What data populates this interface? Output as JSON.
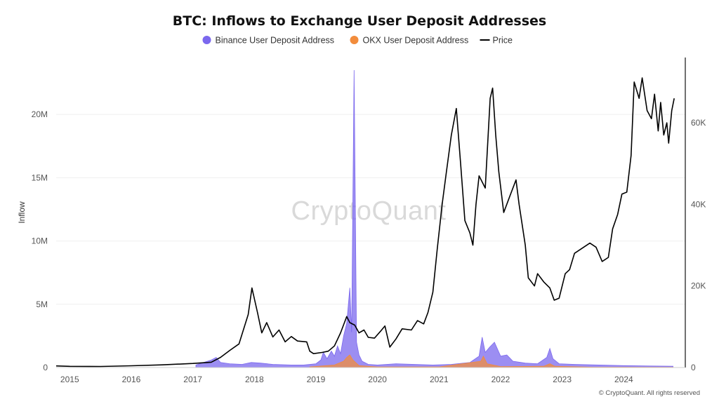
{
  "chart_data": {
    "type": "line",
    "title": "BTC: Inflows to Exchange User Deposit Addresses",
    "ylabel": "Inflow",
    "y2label": "",
    "ylim": [
      0,
      24500000
    ],
    "y2lim": [
      0,
      76000
    ],
    "xlim": [
      2014.78,
      2025.0
    ],
    "y_ticks": [
      {
        "value": 0,
        "label": "0"
      },
      {
        "value": 5000000,
        "label": "5M"
      },
      {
        "value": 10000000,
        "label": "10M"
      },
      {
        "value": 15000000,
        "label": "15M"
      },
      {
        "value": 20000000,
        "label": "20M"
      }
    ],
    "y2_ticks": [
      {
        "value": 0,
        "label": "0"
      },
      {
        "value": 20000,
        "label": "20K"
      },
      {
        "value": 40000,
        "label": "40K"
      },
      {
        "value": 60000,
        "label": "60K"
      }
    ],
    "x_ticks": [
      {
        "value": 2015,
        "label": "2015"
      },
      {
        "value": 2016,
        "label": "2016"
      },
      {
        "value": 2017,
        "label": "2017"
      },
      {
        "value": 2018,
        "label": "2018"
      },
      {
        "value": 2019,
        "label": "2019"
      },
      {
        "value": 2020,
        "label": "2020"
      },
      {
        "value": 2021,
        "label": "2021"
      },
      {
        "value": 2022,
        "label": "2022"
      },
      {
        "value": 2023,
        "label": "2023"
      },
      {
        "value": 2024,
        "label": "2024"
      }
    ],
    "legend": [
      {
        "name": "Binance User Deposit Address",
        "color": "#7b68ee",
        "marker": "dot"
      },
      {
        "name": "OKX User Deposit Address",
        "color": "#f28c3c",
        "marker": "dot"
      },
      {
        "name": "Price",
        "color": "#000000",
        "marker": "line"
      }
    ],
    "legend_position": "top-center",
    "grid": true,
    "watermark": "CryptoQuant",
    "credit": "© CryptoQuant. All rights reserved",
    "series": [
      {
        "name": "Price",
        "axis": "right",
        "color": "#000000",
        "points": [
          [
            2014.78,
            400
          ],
          [
            2015.0,
            300
          ],
          [
            2015.5,
            250
          ],
          [
            2016.0,
            430
          ],
          [
            2016.5,
            650
          ],
          [
            2017.0,
            1000
          ],
          [
            2017.3,
            1300
          ],
          [
            2017.45,
            2500
          ],
          [
            2017.6,
            4200
          ],
          [
            2017.75,
            5800
          ],
          [
            2017.9,
            13000
          ],
          [
            2017.96,
            19500
          ],
          [
            2018.05,
            13500
          ],
          [
            2018.12,
            8500
          ],
          [
            2018.2,
            11000
          ],
          [
            2018.3,
            7500
          ],
          [
            2018.4,
            9200
          ],
          [
            2018.5,
            6300
          ],
          [
            2018.6,
            7600
          ],
          [
            2018.7,
            6500
          ],
          [
            2018.85,
            6300
          ],
          [
            2018.9,
            4000
          ],
          [
            2018.96,
            3400
          ],
          [
            2019.1,
            3700
          ],
          [
            2019.2,
            4000
          ],
          [
            2019.3,
            5300
          ],
          [
            2019.4,
            8500
          ],
          [
            2019.5,
            12500
          ],
          [
            2019.55,
            11000
          ],
          [
            2019.63,
            10400
          ],
          [
            2019.7,
            8500
          ],
          [
            2019.78,
            9200
          ],
          [
            2019.85,
            7400
          ],
          [
            2019.95,
            7200
          ],
          [
            2020.05,
            8900
          ],
          [
            2020.12,
            10200
          ],
          [
            2020.2,
            5000
          ],
          [
            2020.3,
            7000
          ],
          [
            2020.4,
            9500
          ],
          [
            2020.55,
            9200
          ],
          [
            2020.65,
            11500
          ],
          [
            2020.75,
            10700
          ],
          [
            2020.82,
            13500
          ],
          [
            2020.9,
            18500
          ],
          [
            2020.97,
            29000
          ],
          [
            2021.05,
            40000
          ],
          [
            2021.12,
            48000
          ],
          [
            2021.2,
            57000
          ],
          [
            2021.28,
            63500
          ],
          [
            2021.35,
            50000
          ],
          [
            2021.42,
            36000
          ],
          [
            2021.5,
            33000
          ],
          [
            2021.55,
            30000
          ],
          [
            2021.6,
            40000
          ],
          [
            2021.65,
            47000
          ],
          [
            2021.75,
            44000
          ],
          [
            2021.83,
            66000
          ],
          [
            2021.87,
            68500
          ],
          [
            2021.92,
            57000
          ],
          [
            2021.97,
            48000
          ],
          [
            2022.05,
            38000
          ],
          [
            2022.15,
            42000
          ],
          [
            2022.25,
            46000
          ],
          [
            2022.3,
            40000
          ],
          [
            2022.4,
            30000
          ],
          [
            2022.45,
            22000
          ],
          [
            2022.55,
            20000
          ],
          [
            2022.6,
            23000
          ],
          [
            2022.7,
            21000
          ],
          [
            2022.8,
            19500
          ],
          [
            2022.87,
            16500
          ],
          [
            2022.95,
            17000
          ],
          [
            2023.05,
            23000
          ],
          [
            2023.12,
            24000
          ],
          [
            2023.2,
            28000
          ],
          [
            2023.3,
            29000
          ],
          [
            2023.45,
            30500
          ],
          [
            2023.55,
            29500
          ],
          [
            2023.65,
            26000
          ],
          [
            2023.75,
            27000
          ],
          [
            2023.82,
            34000
          ],
          [
            2023.9,
            37500
          ],
          [
            2023.97,
            42500
          ],
          [
            2024.05,
            43000
          ],
          [
            2024.12,
            52000
          ],
          [
            2024.17,
            70000
          ],
          [
            2024.25,
            66000
          ],
          [
            2024.3,
            71000
          ],
          [
            2024.38,
            63000
          ],
          [
            2024.45,
            61000
          ],
          [
            2024.5,
            67000
          ],
          [
            2024.56,
            58000
          ],
          [
            2024.6,
            65000
          ],
          [
            2024.65,
            57000
          ],
          [
            2024.7,
            60000
          ],
          [
            2024.73,
            55000
          ],
          [
            2024.78,
            63000
          ],
          [
            2024.82,
            66000
          ]
        ]
      },
      {
        "name": "Binance User Deposit Address",
        "axis": "left",
        "color": "#7b68ee",
        "points": [
          [
            2017.05,
            200000
          ],
          [
            2017.3,
            600000
          ],
          [
            2017.38,
            800000
          ],
          [
            2017.45,
            400000
          ],
          [
            2017.6,
            300000
          ],
          [
            2017.8,
            250000
          ],
          [
            2017.95,
            400000
          ],
          [
            2018.1,
            350000
          ],
          [
            2018.3,
            250000
          ],
          [
            2018.6,
            200000
          ],
          [
            2018.8,
            200000
          ],
          [
            2019.0,
            300000
          ],
          [
            2019.08,
            600000
          ],
          [
            2019.12,
            1200000
          ],
          [
            2019.18,
            700000
          ],
          [
            2019.25,
            1300000
          ],
          [
            2019.3,
            900000
          ],
          [
            2019.35,
            1700000
          ],
          [
            2019.4,
            1100000
          ],
          [
            2019.45,
            2500000
          ],
          [
            2019.5,
            3500000
          ],
          [
            2019.55,
            6300000
          ],
          [
            2019.58,
            2800000
          ],
          [
            2019.62,
            23500000
          ],
          [
            2019.66,
            2000000
          ],
          [
            2019.7,
            1000000
          ],
          [
            2019.75,
            500000
          ],
          [
            2019.85,
            250000
          ],
          [
            2020.0,
            200000
          ],
          [
            2020.3,
            300000
          ],
          [
            2020.6,
            250000
          ],
          [
            2020.9,
            200000
          ],
          [
            2021.2,
            250000
          ],
          [
            2021.5,
            400000
          ],
          [
            2021.65,
            900000
          ],
          [
            2021.7,
            2400000
          ],
          [
            2021.75,
            1200000
          ],
          [
            2021.82,
            1600000
          ],
          [
            2021.9,
            2000000
          ],
          [
            2022.0,
            900000
          ],
          [
            2022.1,
            1000000
          ],
          [
            2022.2,
            500000
          ],
          [
            2022.4,
            350000
          ],
          [
            2022.6,
            300000
          ],
          [
            2022.75,
            800000
          ],
          [
            2022.8,
            1500000
          ],
          [
            2022.85,
            700000
          ],
          [
            2022.95,
            300000
          ],
          [
            2023.2,
            250000
          ],
          [
            2023.6,
            200000
          ],
          [
            2024.0,
            150000
          ],
          [
            2024.4,
            120000
          ],
          [
            2024.8,
            100000
          ]
        ]
      },
      {
        "name": "OKX User Deposit Address",
        "axis": "left",
        "color": "#f28c3c",
        "points": [
          [
            2018.9,
            50000
          ],
          [
            2019.3,
            200000
          ],
          [
            2019.45,
            500000
          ],
          [
            2019.5,
            800000
          ],
          [
            2019.55,
            1000000
          ],
          [
            2019.6,
            600000
          ],
          [
            2019.7,
            150000
          ],
          [
            2020.0,
            50000
          ],
          [
            2021.0,
            50000
          ],
          [
            2021.68,
            500000
          ],
          [
            2021.72,
            900000
          ],
          [
            2021.78,
            300000
          ],
          [
            2022.0,
            80000
          ],
          [
            2022.7,
            100000
          ],
          [
            2022.8,
            300000
          ],
          [
            2022.88,
            100000
          ],
          [
            2023.5,
            30000
          ],
          [
            2024.8,
            20000
          ]
        ]
      }
    ]
  }
}
